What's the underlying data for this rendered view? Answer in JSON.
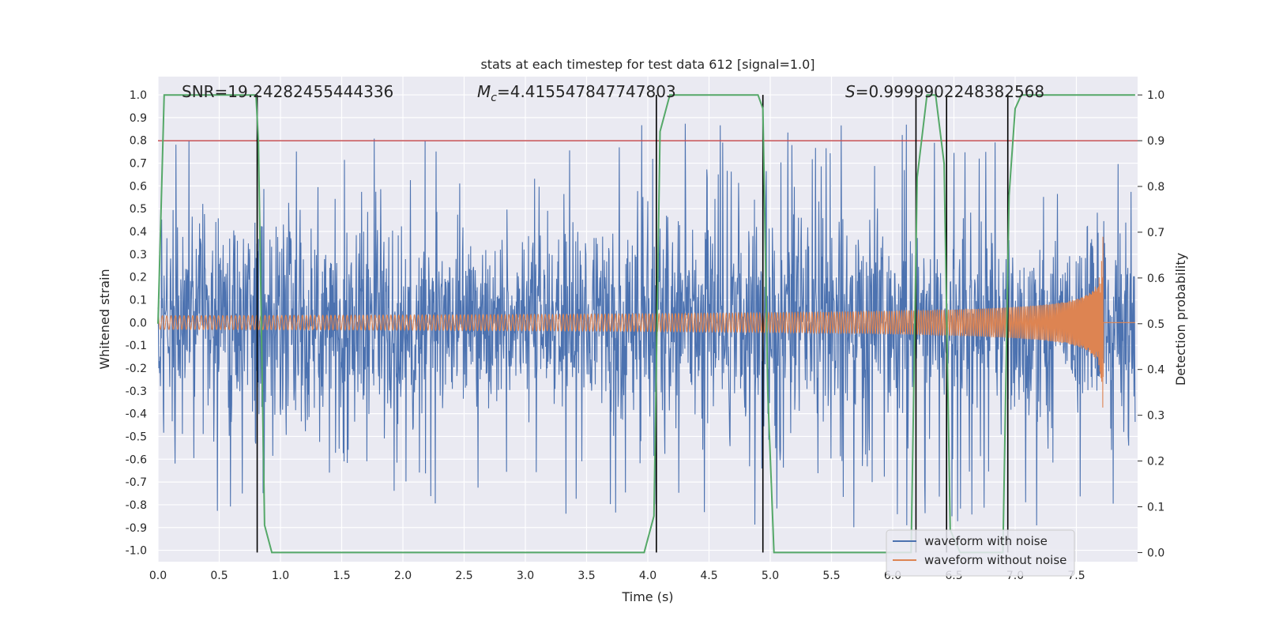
{
  "chart_data": {
    "type": "line",
    "title": "stats at each timestep for test data 612 [signal=1.0]",
    "xlabel": "Time (s)",
    "ylabel": "Whitened strain",
    "ylabel_right": "Detection probability",
    "xlim": [
      0.0,
      8.0
    ],
    "ylim": [
      -1.05,
      1.08
    ],
    "ylim_right": [
      -0.02,
      1.04
    ],
    "xticks": [
      0.0,
      0.5,
      1.0,
      1.5,
      2.0,
      2.5,
      3.0,
      3.5,
      4.0,
      4.5,
      5.0,
      5.5,
      6.0,
      6.5,
      7.0,
      7.5
    ],
    "xtick_labels": [
      "0.0",
      "0.5",
      "1.0",
      "1.5",
      "2.0",
      "2.5",
      "3.0",
      "3.5",
      "4.0",
      "4.5",
      "5.0",
      "5.5",
      "6.0",
      "6.5",
      "7.0",
      "7.5"
    ],
    "yticks": [
      1.0,
      0.9,
      0.8,
      0.7,
      0.6,
      0.5,
      0.4,
      0.3,
      0.2,
      0.1,
      0.0,
      -0.1,
      -0.2,
      -0.3,
      -0.4,
      -0.5,
      -0.6,
      -0.7,
      -0.8,
      -0.9,
      -1.0
    ],
    "ytick_labels": [
      "1.0",
      "0.9",
      "0.8",
      "0.7",
      "0.6",
      "0.5",
      "0.4",
      "0.3",
      "0.2",
      "0.1",
      "0.0",
      "-0.1",
      "-0.2",
      "-0.3",
      "-0.4",
      "-0.5",
      "-0.6",
      "-0.7",
      "-0.8",
      "-0.9",
      "-1.0"
    ],
    "yticks_right": [
      1.0,
      0.9,
      0.8,
      0.7,
      0.6,
      0.5,
      0.4,
      0.3,
      0.2,
      0.1,
      0.0
    ],
    "ytick_labels_right": [
      "1.0",
      "0.9",
      "0.8",
      "0.7",
      "0.6",
      "0.5",
      "0.4",
      "0.3",
      "0.2",
      "0.1",
      "0.0"
    ],
    "annotations": {
      "snr": "SNR=19.24282455444336",
      "mc_symbol": "M",
      "mc_sub": "c",
      "mc_value": "=4.415547847747803",
      "s_symbol": "S",
      "s_value": "=0.9999902248382568"
    },
    "threshold": 0.9,
    "merger_time": 7.72,
    "noise": {
      "amp_near": 0.55,
      "amp_far": 0.9,
      "seed": 612
    },
    "clean": {
      "base_amp": 0.03,
      "peak_amp": 0.44
    },
    "series": [
      {
        "name": "waveform with noise",
        "color": "#4c72b0"
      },
      {
        "name": "waveform without noise",
        "color": "#dd8452"
      },
      {
        "name": "detection probability",
        "color": "#55a868",
        "x": [
          0.0,
          0.05,
          0.1,
          0.8,
          0.82,
          0.87,
          0.93,
          1.0,
          3.97,
          4.05,
          4.1,
          4.18,
          4.5,
          4.9,
          4.94,
          4.98,
          5.03,
          6.0,
          6.15,
          6.2,
          6.28,
          6.35,
          6.42,
          6.47,
          6.55,
          6.9,
          6.95,
          7.0,
          7.05,
          7.12,
          7.5,
          7.98
        ],
        "values": [
          0.5,
          1.0,
          1.0,
          1.0,
          0.9,
          0.06,
          0.0,
          0.0,
          0.0,
          0.08,
          0.92,
          1.0,
          1.0,
          1.0,
          0.97,
          0.35,
          0.0,
          0.0,
          0.0,
          0.82,
          1.0,
          1.0,
          0.85,
          0.05,
          0.0,
          0.0,
          0.78,
          0.97,
          1.0,
          1.0,
          1.0,
          1.0
        ]
      }
    ],
    "vlines": [
      0.81,
      4.07,
      4.94,
      6.19,
      6.44,
      6.94
    ],
    "vline_color": "#000000",
    "threshold_color": "#c44e52",
    "background": "#eaeaf2",
    "legend_position": "lower-right",
    "legend": [
      "waveform with noise",
      "waveform without noise"
    ]
  }
}
